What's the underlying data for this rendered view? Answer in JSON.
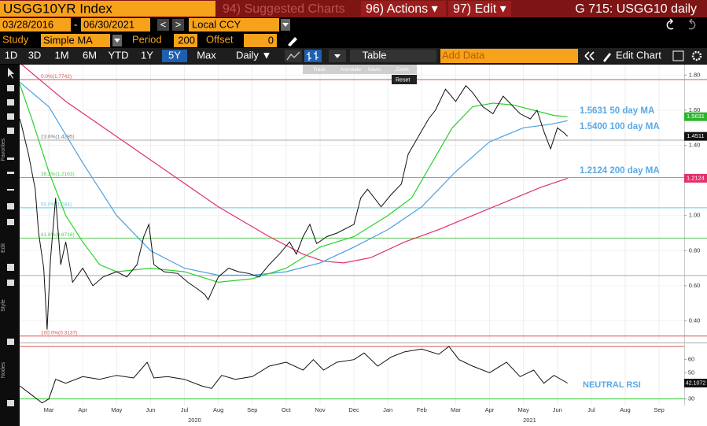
{
  "header": {
    "security": "USGG10YR Index",
    "suggested": "94) Suggested Charts",
    "actions": "96) Actions ▾",
    "edit": "97) Edit ▾",
    "title": "G 715: USGG10 daily"
  },
  "controls": {
    "start": "03/28/2016",
    "dash": "-",
    "end": "06/30/2021",
    "prev": "<",
    "next": ">",
    "currency": "Local CCY",
    "study_label": "Study",
    "study": "Simple MA",
    "period_label": "Period",
    "period": 200,
    "offset_label": "Offset",
    "offset": 0
  },
  "toolbar": {
    "ranges": [
      "1D",
      "3D",
      "1M",
      "6M",
      "YTD",
      "1Y",
      "5Y",
      "Max"
    ],
    "active_range": 6,
    "frequency": "Daily ▼",
    "table": "Table",
    "add_data": "Add Data",
    "edit_chart": "Edit Chart"
  },
  "mini_toolbar": {
    "tools": [
      "Track",
      "Annotate",
      "News",
      "Zoom"
    ],
    "reset": "Reset"
  },
  "side_panels": [
    "Favorites",
    "Edit",
    "Style",
    "Nodes"
  ],
  "chart_data": {
    "type": "line",
    "xlim": [
      1.64,
      21.24
    ],
    "xticks": [
      {
        "value": 2.5,
        "label": "Mar"
      },
      {
        "value": 3.5,
        "label": "Apr"
      },
      {
        "value": 4.5,
        "label": "May"
      },
      {
        "value": 5.5,
        "label": "Jun"
      },
      {
        "value": 6.5,
        "label": "Jul"
      },
      {
        "value": 7.5,
        "label": "Aug"
      },
      {
        "value": 8.5,
        "label": "Sep"
      },
      {
        "value": 9.5,
        "label": "Oct"
      },
      {
        "value": 10.5,
        "label": "Nov"
      },
      {
        "value": 11.5,
        "label": "Dec"
      },
      {
        "value": 12.5,
        "label": "Jan"
      },
      {
        "value": 13.5,
        "label": "Feb"
      },
      {
        "value": 14.5,
        "label": "Mar"
      },
      {
        "value": 15.5,
        "label": "Apr"
      },
      {
        "value": 16.5,
        "label": "May"
      },
      {
        "value": 17.5,
        "label": "Jun"
      },
      {
        "value": 18.5,
        "label": "Jul"
      },
      {
        "value": 19.5,
        "label": "Aug"
      },
      {
        "value": 20.5,
        "label": "Sep"
      }
    ],
    "year_labels": [
      {
        "value": 6.8,
        "label": "2020"
      },
      {
        "value": 16.68,
        "label": "2021"
      }
    ],
    "ylim": [
      0.29,
      1.86
    ],
    "yticks": [
      {
        "value": 0.4,
        "label": "0.40"
      },
      {
        "value": 0.6,
        "label": "0.60"
      },
      {
        "value": 0.8,
        "label": "0.80"
      },
      {
        "value": 1.0,
        "label": "1.00"
      },
      {
        "value": 1.2,
        "label": "1.20"
      },
      {
        "value": 1.4,
        "label": "1.40"
      },
      {
        "value": 1.6,
        "label": "1.60"
      },
      {
        "value": 1.8,
        "label": "1.80"
      }
    ],
    "grid": true,
    "fib_levels": [
      {
        "value": 1.7742,
        "label": "0.0%(1.7742)",
        "color": "#d9534f"
      },
      {
        "value": 1.4295,
        "label": "23.6%(1.4295)",
        "color": "#aaaaaa"
      },
      {
        "value": 1.2163,
        "label": "38.2%(1.2163)",
        "color": "#5cc95c"
      },
      {
        "value": 1.044,
        "label": "50.0%(1.044)",
        "color": "#5fd0e0"
      },
      {
        "value": 0.8716,
        "label": "61.8%(0.8716)",
        "color": "#5cc95c"
      },
      {
        "value": 0.6584,
        "color": "#aaaaaa"
      },
      {
        "value": 0.3137,
        "label": "100.0%(0.3137)",
        "color": "#d9534f"
      }
    ],
    "series": [
      {
        "name": "USGG10YR",
        "color": "#111111",
        "x": [
          1.65,
          1.9,
          2.1,
          2.2,
          2.35,
          2.45,
          2.55,
          2.7,
          2.85,
          3.0,
          3.2,
          3.5,
          3.8,
          4.1,
          4.5,
          4.8,
          5.1,
          5.3,
          5.45,
          5.6,
          5.9,
          6.3,
          6.6,
          6.9,
          7.1,
          7.2,
          7.5,
          7.8,
          8.1,
          8.4,
          8.7,
          9.0,
          9.3,
          9.6,
          9.8,
          10.0,
          10.2,
          10.4,
          10.7,
          11.0,
          11.3,
          11.5,
          11.7,
          11.9,
          12.1,
          12.3,
          12.6,
          12.9,
          13.1,
          13.4,
          13.7,
          13.9,
          14.2,
          14.5,
          14.8,
          15.0,
          15.3,
          15.6,
          15.9,
          16.2,
          16.4,
          16.7,
          16.9,
          17.1,
          17.3,
          17.5,
          17.7,
          17.8
        ],
        "values": [
          1.55,
          1.35,
          1.15,
          0.9,
          0.7,
          0.35,
          0.75,
          1.1,
          0.72,
          0.85,
          0.62,
          0.7,
          0.6,
          0.65,
          0.68,
          0.65,
          0.72,
          0.88,
          0.95,
          0.72,
          0.68,
          0.67,
          0.62,
          0.58,
          0.55,
          0.52,
          0.65,
          0.7,
          0.68,
          0.67,
          0.65,
          0.72,
          0.78,
          0.85,
          0.78,
          0.88,
          0.95,
          0.84,
          0.88,
          0.9,
          0.93,
          0.95,
          1.1,
          1.15,
          1.1,
          1.05,
          1.12,
          1.18,
          1.35,
          1.45,
          1.55,
          1.6,
          1.72,
          1.65,
          1.74,
          1.7,
          1.62,
          1.58,
          1.68,
          1.62,
          1.58,
          1.55,
          1.6,
          1.48,
          1.38,
          1.5,
          1.47,
          1.4511
        ]
      },
      {
        "name": "50 day MA",
        "color": "#2bd12b",
        "x": [
          1.64,
          2.0,
          2.5,
          3.0,
          3.5,
          4.0,
          4.5,
          5.5,
          6.5,
          7.5,
          8.5,
          9.5,
          10.5,
          11.5,
          12.5,
          13.2,
          13.8,
          14.4,
          15.0,
          15.6,
          16.2,
          16.8,
          17.4,
          17.8
        ],
        "values": [
          1.75,
          1.55,
          1.25,
          1.0,
          0.85,
          0.72,
          0.68,
          0.7,
          0.68,
          0.62,
          0.64,
          0.7,
          0.82,
          0.88,
          1.0,
          1.1,
          1.3,
          1.5,
          1.62,
          1.64,
          1.63,
          1.6,
          1.57,
          1.5631
        ]
      },
      {
        "name": "100 day MA",
        "color": "#4a9fe0",
        "x": [
          1.64,
          2.5,
          3.5,
          4.5,
          5.5,
          6.5,
          7.5,
          8.5,
          9.5,
          10.5,
          11.5,
          12.5,
          13.5,
          14.5,
          15.5,
          16.5,
          17.3,
          17.8
        ],
        "values": [
          1.76,
          1.62,
          1.3,
          1.0,
          0.8,
          0.7,
          0.66,
          0.66,
          0.68,
          0.73,
          0.82,
          0.92,
          1.05,
          1.25,
          1.42,
          1.5,
          1.52,
          1.54
        ]
      },
      {
        "name": "200 day MA",
        "color": "#e0306b",
        "x": [
          1.64,
          3.0,
          4.5,
          6.0,
          7.5,
          9.0,
          10.0,
          10.6,
          11.2,
          12.0,
          13.0,
          14.0,
          15.0,
          16.0,
          17.0,
          17.8
        ],
        "values": [
          1.87,
          1.65,
          1.45,
          1.25,
          1.05,
          0.88,
          0.78,
          0.74,
          0.73,
          0.76,
          0.85,
          0.92,
          1.0,
          1.08,
          1.16,
          1.2124
        ]
      }
    ],
    "ma_labels": [
      "1.5631 50 day MA",
      "1.5400 100 day MA",
      "1.2124 200 day MA"
    ],
    "last_tags": [
      {
        "value": 1.5631,
        "color": "#2bb52b"
      },
      {
        "value": 1.4511,
        "color": "#111111"
      },
      {
        "value": 1.2124,
        "color": "#e0306b"
      }
    ],
    "rsi": {
      "x": [
        1.64,
        2.0,
        2.3,
        2.5,
        2.7,
        3.0,
        3.5,
        4.0,
        4.5,
        5.0,
        5.4,
        5.6,
        6.0,
        6.5,
        7.0,
        7.3,
        7.6,
        8.0,
        8.5,
        9.0,
        9.5,
        10.0,
        10.3,
        10.6,
        11.0,
        11.5,
        11.8,
        12.2,
        12.6,
        13.0,
        13.5,
        14.0,
        14.3,
        14.6,
        15.0,
        15.5,
        16.0,
        16.4,
        16.8,
        17.1,
        17.4,
        17.8
      ],
      "values": [
        40,
        33,
        27,
        30,
        45,
        42,
        47,
        45,
        48,
        46,
        58,
        46,
        47,
        45,
        40,
        38,
        48,
        45,
        47,
        55,
        58,
        52,
        60,
        52,
        58,
        60,
        65,
        55,
        62,
        66,
        68,
        64,
        70,
        60,
        55,
        50,
        58,
        47,
        52,
        42,
        48,
        42.1072
      ],
      "color": "#111111",
      "ylim": [
        25,
        70
      ],
      "yticks": [
        30,
        50,
        60
      ],
      "levels": [
        {
          "value": 70,
          "color": "#d9534f"
        },
        {
          "value": 30,
          "color": "#2bd12b"
        }
      ],
      "last_tag": 42.1072,
      "label": "NEUTRAL RSI"
    }
  }
}
